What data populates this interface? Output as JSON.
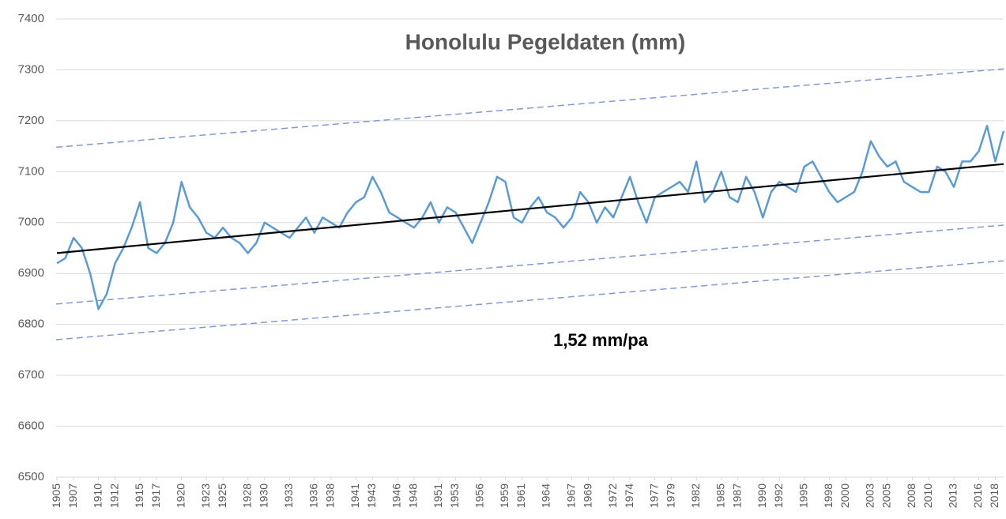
{
  "chart_data": {
    "type": "line",
    "title": "Honolulu Pegeldaten (mm)",
    "annotation": "1,52 mm/pa",
    "x": [
      1905,
      1906,
      1907,
      1908,
      1909,
      1910,
      1911,
      1912,
      1913,
      1914,
      1915,
      1916,
      1917,
      1918,
      1919,
      1920,
      1921,
      1922,
      1923,
      1924,
      1925,
      1926,
      1927,
      1928,
      1929,
      1930,
      1931,
      1932,
      1933,
      1934,
      1935,
      1936,
      1937,
      1938,
      1939,
      1940,
      1941,
      1942,
      1943,
      1944,
      1945,
      1946,
      1947,
      1948,
      1949,
      1950,
      1951,
      1952,
      1953,
      1954,
      1955,
      1956,
      1957,
      1958,
      1959,
      1960,
      1961,
      1962,
      1963,
      1964,
      1965,
      1966,
      1967,
      1968,
      1969,
      1970,
      1971,
      1972,
      1973,
      1974,
      1975,
      1976,
      1977,
      1978,
      1979,
      1980,
      1981,
      1982,
      1983,
      1984,
      1985,
      1986,
      1987,
      1988,
      1989,
      1990,
      1991,
      1992,
      1993,
      1994,
      1995,
      1996,
      1997,
      1998,
      1999,
      2000,
      2001,
      2002,
      2003,
      2004,
      2005,
      2006,
      2007,
      2008,
      2009,
      2010,
      2011,
      2012,
      2013,
      2014,
      2015,
      2016,
      2017,
      2018,
      2019
    ],
    "series": [
      {
        "color": "#5b9bd5",
        "values": [
          6920,
          6930,
          6970,
          6950,
          6900,
          6830,
          6860,
          6920,
          6950,
          6990,
          7040,
          6950,
          6940,
          6960,
          7000,
          7080,
          7030,
          7010,
          6980,
          6970,
          6990,
          6970,
          6960,
          6940,
          6960,
          7000,
          6990,
          6980,
          6970,
          6990,
          7010,
          6980,
          7010,
          7000,
          6990,
          7020,
          7040,
          7050,
          7090,
          7060,
          7020,
          7010,
          7000,
          6990,
          7010,
          7040,
          7000,
          7030,
          7020,
          6990,
          6960,
          7000,
          7040,
          7090,
          7080,
          7010,
          7000,
          7030,
          7050,
          7020,
          7010,
          6990,
          7010,
          7060,
          7040,
          7000,
          7030,
          7010,
          7050,
          7090,
          7040,
          7000,
          7050,
          7060,
          7070,
          7080,
          7060,
          7120,
          7040,
          7060,
          7100,
          7050,
          7040,
          7090,
          7060,
          7010,
          7060,
          7080,
          7070,
          7060,
          7110,
          7120,
          7090,
          7060,
          7040,
          7050,
          7060,
          7100,
          7160,
          7130,
          7110,
          7120,
          7080,
          7070,
          7060,
          7060,
          7110,
          7100,
          7070,
          7120,
          7120,
          7140,
          7190,
          7120,
          7180
        ]
      }
    ],
    "reference_lines": [
      {
        "style": "solid",
        "color": "#000000",
        "x": [
          1905,
          2019
        ],
        "values": [
          6940,
          7115
        ]
      },
      {
        "style": "dashed",
        "color": "#7f9bd4",
        "x": [
          1904.9,
          2019
        ],
        "values": [
          7148,
          7302
        ]
      },
      {
        "style": "dashed",
        "color": "#7f9bd4",
        "x": [
          1904.9,
          2019
        ],
        "values": [
          6840,
          6995
        ]
      },
      {
        "style": "dashed",
        "color": "#7f9bd4",
        "x": [
          1904.9,
          2019
        ],
        "values": [
          6770,
          6925
        ]
      }
    ],
    "xlim": [
      1904.9,
      2019
    ],
    "xticks": [
      1905,
      1907,
      1910,
      1912,
      1915,
      1917,
      1920,
      1923,
      1925,
      1928,
      1930,
      1933,
      1936,
      1938,
      1941,
      1943,
      1946,
      1948,
      1951,
      1953,
      1956,
      1959,
      1961,
      1964,
      1967,
      1969,
      1972,
      1974,
      1977,
      1979,
      1982,
      1985,
      1987,
      1990,
      1992,
      1995,
      1998,
      2000,
      2003,
      2005,
      2008,
      2010,
      2013,
      2016,
      2018
    ],
    "ylim": [
      6500,
      7400
    ],
    "yticks": [
      6500,
      6600,
      6700,
      6800,
      6900,
      7000,
      7100,
      7200,
      7300,
      7400
    ],
    "grid": true
  }
}
